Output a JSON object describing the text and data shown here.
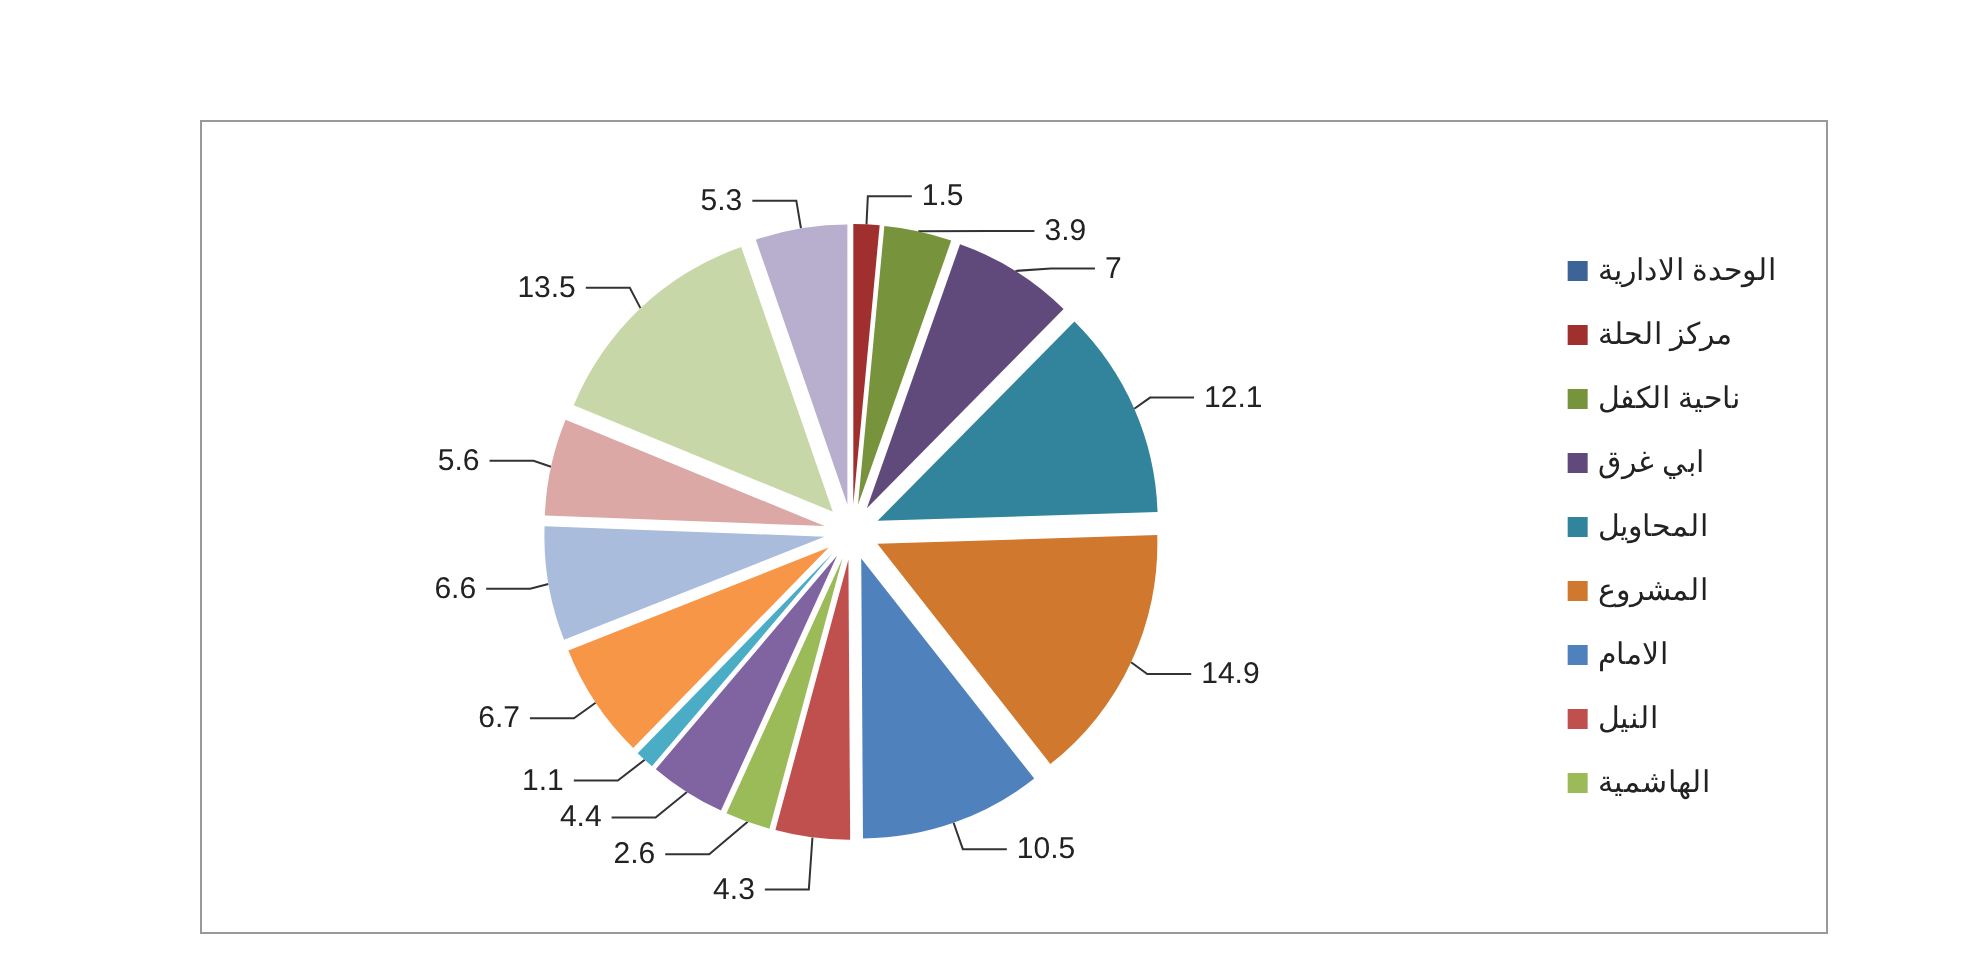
{
  "chart_data": {
    "type": "pie",
    "categories": [
      "الوحدة الادارية",
      "مركز الحلة",
      "ناحية الكفل",
      "ابي غرق",
      "المحاويل",
      "المشروع",
      "الامام",
      "النيل",
      "الهاشمية",
      null,
      null,
      null,
      null,
      null,
      null,
      null
    ],
    "values": [
      0,
      1.5,
      3.9,
      7,
      12.1,
      14.9,
      10.5,
      4.3,
      2.6,
      4.4,
      1.1,
      6.7,
      6.6,
      5.6,
      13.5,
      5.3
    ],
    "value_labels": [
      null,
      "1.5",
      "3.9",
      "7",
      "12.1",
      "14.9",
      "10.5",
      "4.3",
      "2.6",
      "4.4",
      "1.1",
      "6.7",
      "6.6",
      "5.6",
      "13.5",
      "5.3"
    ],
    "colors": [
      "#3c6496",
      "#a0302d",
      "#77933c",
      "#604a7b",
      "#31849b",
      "#d0782e",
      "#4f81bd",
      "#c0504d",
      "#9bbb59",
      "#8064a2",
      "#4bacc6",
      "#f79646",
      "#a9bcdc",
      "#dba8a6",
      "#c8d7a8",
      "#b8aecd"
    ],
    "legend": "right"
  }
}
